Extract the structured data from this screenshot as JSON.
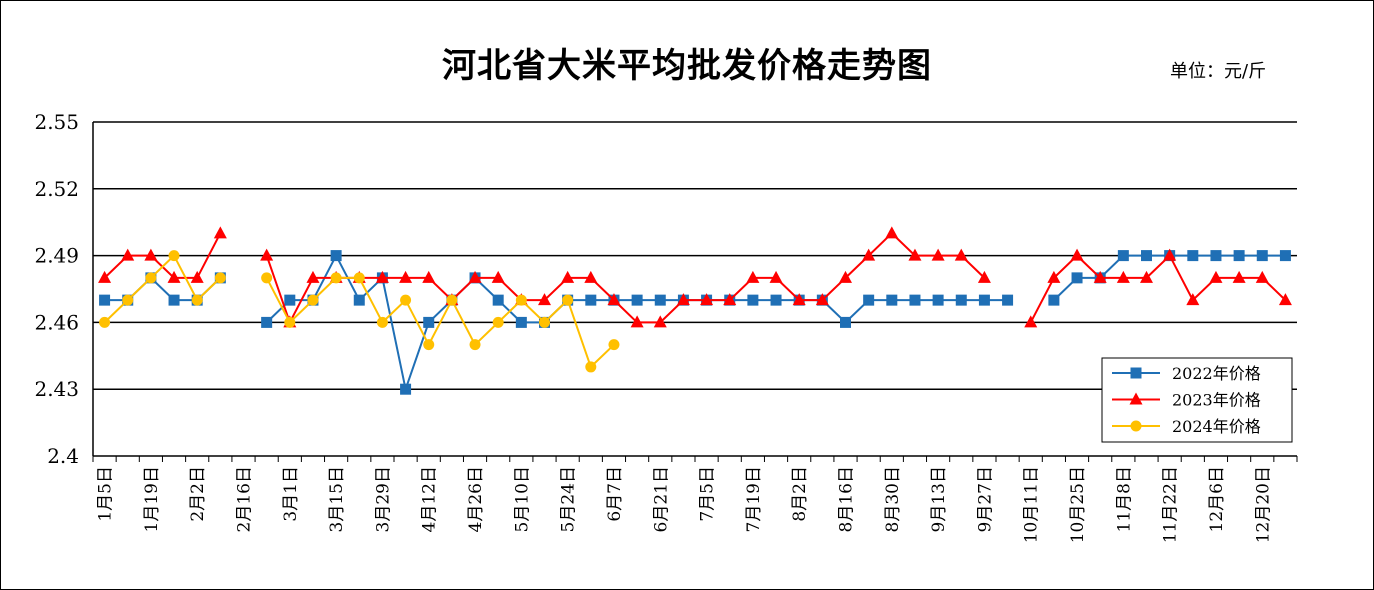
{
  "title": "河北省大米平均批发价格走势图",
  "unit_label": "单位：元/斤",
  "chart_data": {
    "type": "line",
    "title": "河北省大米平均批发价格走势图",
    "unit": "单位：元/斤",
    "ylim": [
      2.4,
      2.55
    ],
    "yticks": [
      "2.55",
      "2.52",
      "2.49",
      "2.46",
      "2.43",
      "2.4"
    ],
    "ytick_values": [
      2.55,
      2.52,
      2.49,
      2.46,
      2.43,
      2.4
    ],
    "xtick_labels": [
      "1月5日",
      "1月19日",
      "2月2日",
      "2月16日",
      "3月1日",
      "3月15日",
      "3月29日",
      "4月12日",
      "4月26日",
      "5月10日",
      "5月24日",
      "6月7日",
      "6月21日",
      "7月5日",
      "7月19日",
      "8月2日",
      "8月16日",
      "8月30日",
      "9月13日",
      "9月27日",
      "10月11日",
      "10月25日",
      "11月8日",
      "11月22日",
      "12月6日",
      "12月20日"
    ],
    "grid": true,
    "legend_position": "bottom-right",
    "series": [
      {
        "name": "2022年价格",
        "color": "#1F6FB5",
        "marker": "square",
        "values": [
          2.47,
          2.47,
          2.48,
          2.47,
          2.47,
          2.48,
          null,
          2.46,
          2.47,
          2.47,
          2.49,
          2.47,
          2.48,
          2.43,
          2.46,
          2.47,
          2.48,
          2.47,
          2.46,
          2.46,
          2.47,
          2.47,
          2.47,
          2.47,
          2.47,
          2.47,
          2.47,
          2.47,
          2.47,
          2.47,
          2.47,
          2.47,
          2.46,
          2.47,
          2.47,
          2.47,
          2.47,
          2.47,
          2.47,
          2.47,
          null,
          2.47,
          2.48,
          2.48,
          2.49,
          2.49,
          2.49,
          2.49,
          2.49,
          2.49,
          2.49,
          2.49
        ]
      },
      {
        "name": "2023年价格",
        "color": "#FF0000",
        "marker": "triangle",
        "values": [
          2.48,
          2.49,
          2.49,
          2.48,
          2.48,
          2.5,
          null,
          2.49,
          2.46,
          2.48,
          2.48,
          2.48,
          2.48,
          2.48,
          2.48,
          2.47,
          2.48,
          2.48,
          2.47,
          2.47,
          2.48,
          2.48,
          2.47,
          2.46,
          2.46,
          2.47,
          2.47,
          2.47,
          2.48,
          2.48,
          2.47,
          2.47,
          2.48,
          2.49,
          2.5,
          2.49,
          2.49,
          2.49,
          2.48,
          null,
          2.46,
          2.48,
          2.49,
          2.48,
          2.48,
          2.48,
          2.49,
          2.47,
          2.48,
          2.48,
          2.48,
          2.47
        ]
      },
      {
        "name": "2024年价格",
        "color": "#FFC000",
        "marker": "circle",
        "values": [
          2.46,
          2.47,
          2.48,
          2.49,
          2.47,
          2.48,
          null,
          2.48,
          2.46,
          2.47,
          2.48,
          2.48,
          2.46,
          2.47,
          2.45,
          2.47,
          2.45,
          2.46,
          2.47,
          2.46,
          2.47,
          2.44,
          2.45
        ]
      }
    ]
  }
}
